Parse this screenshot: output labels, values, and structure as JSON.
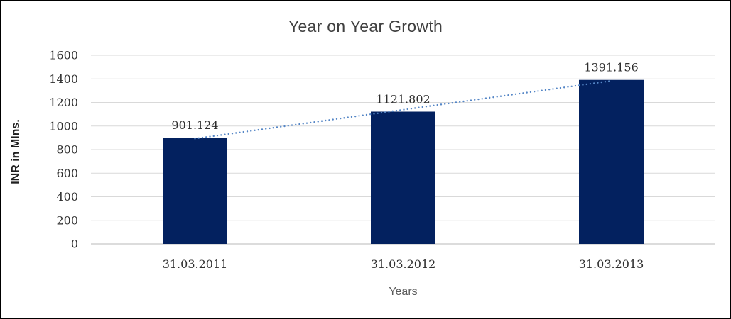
{
  "chart_data": {
    "type": "bar",
    "title": "Year on Year Growth",
    "xlabel": "Years",
    "ylabel": "INR in Mlns.",
    "categories": [
      "31.03.2011",
      "31.03.2012",
      "31.03.2013"
    ],
    "values": [
      901.124,
      1121.802,
      1391.156
    ],
    "data_labels": [
      "901.124",
      "1121.802",
      "1391.156"
    ],
    "ylim": [
      0,
      1600
    ],
    "yticks": [
      0,
      200,
      400,
      600,
      800,
      1000,
      1200,
      1400,
      1600
    ],
    "grid": true,
    "legend": "none",
    "trendline": {
      "type": "linear",
      "style": "dotted"
    },
    "colors": {
      "bar": "#03215F",
      "trend": "#5586C6",
      "grid": "#D9D9D9",
      "axis_line": "#D1D1D1",
      "title_text": "#404040",
      "tick_text": "#2E2E2E",
      "axis_title_text": "#595959",
      "background": "#FFFFFF",
      "frame_border": "#000000"
    }
  }
}
